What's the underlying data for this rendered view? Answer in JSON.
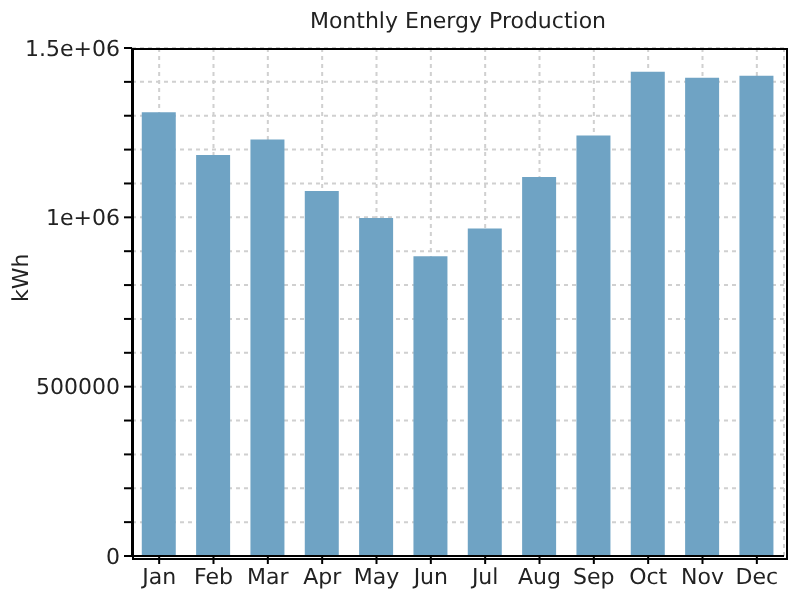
{
  "chart_data": {
    "type": "bar",
    "title": "Monthly Energy Production",
    "ylabel": "kWh",
    "categories": [
      "Jan",
      "Feb",
      "Mar",
      "Apr",
      "May",
      "Jun",
      "Jul",
      "Aug",
      "Sep",
      "Oct",
      "Nov",
      "Dec"
    ],
    "values": [
      1310000,
      1184000,
      1230000,
      1078000,
      998000,
      885000,
      967000,
      1119000,
      1242000,
      1430000,
      1412000,
      1418000
    ],
    "color": "#6fa3c4",
    "ylim": [
      0,
      1500000
    ],
    "yticks": [
      0,
      {
        "value": 100000,
        "label": null
      },
      {
        "value": 200000,
        "label": null
      },
      {
        "value": 300000,
        "label": null
      },
      {
        "value": 400000,
        "label": null
      },
      500000,
      {
        "value": 600000,
        "label": null
      },
      {
        "value": 700000,
        "label": null
      },
      {
        "value": 800000,
        "label": null
      },
      {
        "value": 900000,
        "label": null
      },
      {
        "value": 1000000,
        "label": "1e+06"
      },
      {
        "value": 1100000,
        "label": null
      },
      {
        "value": 1200000,
        "label": null
      },
      {
        "value": 1300000,
        "label": null
      },
      {
        "value": 1400000,
        "label": null
      },
      {
        "value": 1500000,
        "label": "1.5e+06"
      }
    ],
    "grid": true
  }
}
